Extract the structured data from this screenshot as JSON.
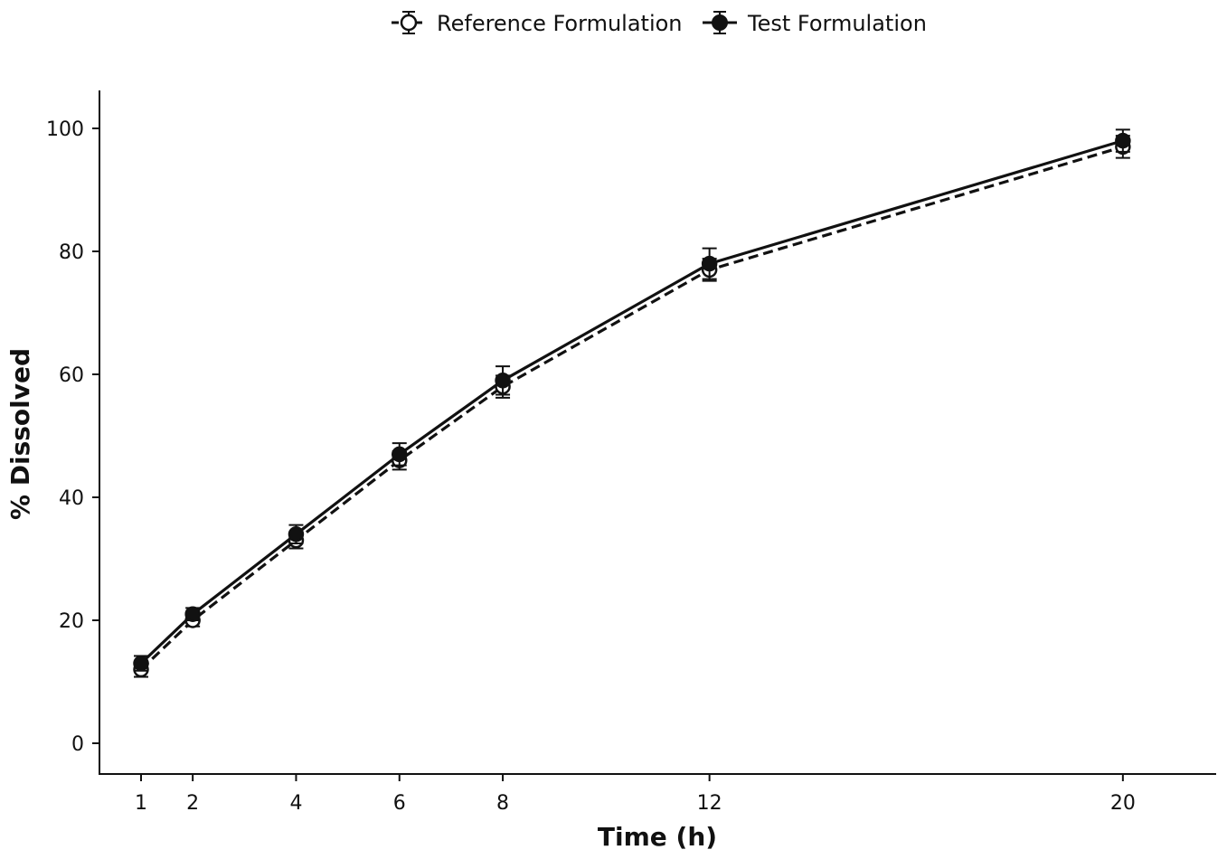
{
  "chart_data": {
    "type": "line",
    "x": [
      1,
      2,
      4,
      6,
      8,
      12,
      20
    ],
    "xlabel": "Time (h)",
    "ylabel": "% Dissolved",
    "xticks": [
      1,
      2,
      4,
      6,
      8,
      12,
      20
    ],
    "yticks": [
      0,
      20,
      40,
      60,
      80,
      100
    ],
    "xlim": [
      0,
      21.5
    ],
    "ylim": [
      -5,
      106
    ],
    "grid": false,
    "legend_position": "top-center",
    "series": [
      {
        "name": "Reference Formulation",
        "marker": "open-circle",
        "line_style": "dashed",
        "color": "#111111",
        "values": [
          12,
          20,
          33,
          46,
          58,
          77,
          97
        ],
        "errors": [
          1.2,
          1.0,
          1.3,
          1.5,
          1.8,
          1.8,
          1.8
        ]
      },
      {
        "name": "Test Formulation",
        "marker": "filled-circle",
        "line_style": "solid",
        "color": "#111111",
        "values": [
          13,
          21,
          34,
          47,
          59,
          78,
          98
        ],
        "errors": [
          1.2,
          1.0,
          1.5,
          1.8,
          2.3,
          2.5,
          1.8
        ]
      }
    ]
  }
}
